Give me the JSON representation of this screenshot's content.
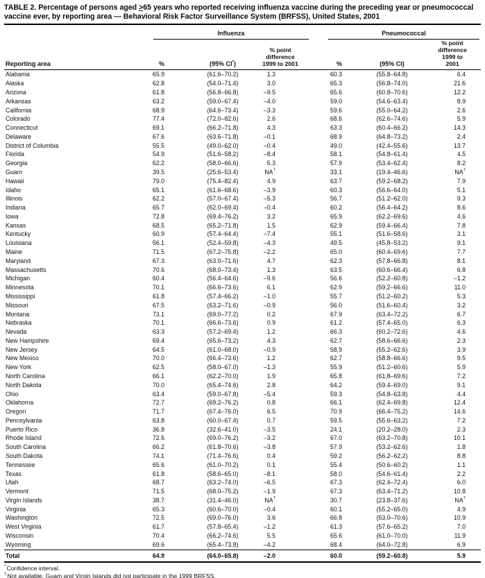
{
  "title": {
    "line1_pre": "TABLE 2. Percentage of persons aged ",
    "line1_geq": ">",
    "line1_post": "65 years who reported receiving influenza vaccine during the preceding year or pneumococcal",
    "line2": "vaccine ever, by reporting area — Behavioral Risk Factor Surveillance System (BRFSS), United States, 2001"
  },
  "table": {
    "header": {
      "reporting_area": "Reporting area",
      "influenza": "Influenza",
      "pneumococcal": "Pneumococcal",
      "pct": "%",
      "flu_ci": {
        "pre": "(95% CI",
        "sup": "*",
        "post": ")"
      },
      "pneu_ci": "(95% CI)",
      "diff1": "% point",
      "diff2": "difference",
      "diff3": "1999 to 2001"
    },
    "rows": [
      {
        "area": "Alabama",
        "flu_pct": "65.9",
        "flu_ci": "(61.6–70.2)",
        "flu_diff": "1.3",
        "pneu_pct": "60.3",
        "pneu_ci": "(55.8–64.8)",
        "pneu_diff": "6.4"
      },
      {
        "area": "Alaska",
        "flu_pct": "62.8",
        "flu_ci": "(54.0–71.4)",
        "flu_diff": "3.0",
        "pneu_pct": "65.3",
        "pneu_ci": "(56.8–74.0)",
        "pneu_diff": "21.6"
      },
      {
        "area": "Arizona",
        "flu_pct": "61.8",
        "flu_ci": "(56.8–66.8)",
        "flu_diff": "–9.5",
        "pneu_pct": "65.6",
        "pneu_ci": "(60.8–70.6)",
        "pneu_diff": "12.2"
      },
      {
        "area": "Arkansas",
        "flu_pct": "63.2",
        "flu_ci": "(59.0–67.4)",
        "flu_diff": "–4.0",
        "pneu_pct": "59.0",
        "pneu_ci": "(54.6–63.4)",
        "pneu_diff": "8.9"
      },
      {
        "area": "California",
        "flu_pct": "68.9",
        "flu_ci": "(64.6–73.4)",
        "flu_diff": "–3.3",
        "pneu_pct": "59.6",
        "pneu_ci": "(55.0–64.2)",
        "pneu_diff": "2.6"
      },
      {
        "area": "Colorado",
        "flu_pct": "77.4",
        "flu_ci": "(72.0–82.6)",
        "flu_diff": "2.6",
        "pneu_pct": "68.6",
        "pneu_ci": "(62.6–74.6)",
        "pneu_diff": "5.9"
      },
      {
        "area": "Connecticut",
        "flu_pct": "69.1",
        "flu_ci": "(66.2–71.8)",
        "flu_diff": "4.3",
        "pneu_pct": "63.3",
        "pneu_ci": "(60.4–66.2)",
        "pneu_diff": "14.3"
      },
      {
        "area": "Delaware",
        "flu_pct": "67.6",
        "flu_ci": "(63.6–71.8)",
        "flu_diff": "–0.1",
        "pneu_pct": "68.9",
        "pneu_ci": "(64.8–73.2)",
        "pneu_diff": "2.4"
      },
      {
        "area": "District of Columbia",
        "flu_pct": "55.5",
        "flu_ci": "(49.0–62.0)",
        "flu_diff": "–0.4",
        "pneu_pct": "49.0",
        "pneu_ci": "(42.4–55.6)",
        "pneu_diff": "13.7"
      },
      {
        "area": "Florida",
        "flu_pct": "54.9",
        "flu_ci": "(51.6–58.2)",
        "flu_diff": "–8.4",
        "pneu_pct": "58.1",
        "pneu_ci": "(54.8–61.4)",
        "pneu_diff": "4.5"
      },
      {
        "area": "Georgia",
        "flu_pct": "62.2",
        "flu_ci": "(58.0–66.6)",
        "flu_diff": "5.3",
        "pneu_pct": "57.9",
        "pneu_ci": "(53.4–62.4)",
        "pneu_diff": "8.2"
      },
      {
        "area": "Guam",
        "flu_pct": "39.5",
        "flu_ci": "(25.6–53.4)",
        "flu_diff": "NA†",
        "pneu_pct": "33.1",
        "pneu_ci": "(19.4–46.6)",
        "pneu_diff": "NA†"
      },
      {
        "area": "Hawaii",
        "flu_pct": "79.0",
        "flu_ci": "(75.4–82.4)",
        "flu_diff": "4.9",
        "pneu_pct": "63.7",
        "pneu_ci": "(59.2–68.2)",
        "pneu_diff": "7.9"
      },
      {
        "area": "Idaho",
        "flu_pct": "65.1",
        "flu_ci": "(61.6–68.6)",
        "flu_diff": "–3.9",
        "pneu_pct": "60.3",
        "pneu_ci": "(56.6–64.0)",
        "pneu_diff": "5.1"
      },
      {
        "area": "Illinois",
        "flu_pct": "62.2",
        "flu_ci": "(57.0–67.4)",
        "flu_diff": "–5.3",
        "pneu_pct": "56.7",
        "pneu_ci": "(51.2–62.0)",
        "pneu_diff": "9.3"
      },
      {
        "area": "Indiana",
        "flu_pct": "65.7",
        "flu_ci": "(62.0–69.4)",
        "flu_diff": "–0.4",
        "pneu_pct": "60.2",
        "pneu_ci": "(56.4–64.2)",
        "pneu_diff": "8.6"
      },
      {
        "area": "Iowa",
        "flu_pct": "72.8",
        "flu_ci": "(69.4–76.2)",
        "flu_diff": "3.2",
        "pneu_pct": "65.9",
        "pneu_ci": "(62.2–69.6)",
        "pneu_diff": "4.6"
      },
      {
        "area": "Kansas",
        "flu_pct": "68.5",
        "flu_ci": "(65.2–71.8)",
        "flu_diff": "1.5",
        "pneu_pct": "62.9",
        "pneu_ci": "(59.4–66.4)",
        "pneu_diff": "7.8"
      },
      {
        "area": "Kentucky",
        "flu_pct": "60.9",
        "flu_ci": "(57.4–64.4)",
        "flu_diff": "–7.4",
        "pneu_pct": "55.1",
        "pneu_ci": "(51.6–58.6)",
        "pneu_diff": "3.1"
      },
      {
        "area": "Louisiana",
        "flu_pct": "56.1",
        "flu_ci": "(52.4–59.8)",
        "flu_diff": "–4.3",
        "pneu_pct": "49.5",
        "pneu_ci": "(45.8–53.2)",
        "pneu_diff": "9.1"
      },
      {
        "area": "Maine",
        "flu_pct": "71.5",
        "flu_ci": "(67.2–75.8)",
        "flu_diff": "–2.2",
        "pneu_pct": "65.0",
        "pneu_ci": "(60.4–69.6)",
        "pneu_diff": "7.7"
      },
      {
        "area": "Maryland",
        "flu_pct": "67.3",
        "flu_ci": "(63.0–71.6)",
        "flu_diff": "4.7",
        "pneu_pct": "62.3",
        "pneu_ci": "(57.8–66.8)",
        "pneu_diff": "8.1"
      },
      {
        "area": "Massachusetts",
        "flu_pct": "70.6",
        "flu_ci": "(68.0–73.4)",
        "flu_diff": "1.3",
        "pneu_pct": "63.5",
        "pneu_ci": "(60.6–66.4)",
        "pneu_diff": "6.8"
      },
      {
        "area": "Michigan",
        "flu_pct": "60.4",
        "flu_ci": "(56.4–64.6)",
        "flu_diff": "–9.6",
        "pneu_pct": "56.6",
        "pneu_ci": "(52.2–60.8)",
        "pneu_diff": "–1.2"
      },
      {
        "area": "Minnesota",
        "flu_pct": "70.1",
        "flu_ci": "(66.6–73.6)",
        "flu_diff": "6.1",
        "pneu_pct": "62.9",
        "pneu_ci": "(59.2–66.6)",
        "pneu_diff": "11.0"
      },
      {
        "area": "Mississippi",
        "flu_pct": "61.8",
        "flu_ci": "(57.4–66.2)",
        "flu_diff": "–1.0",
        "pneu_pct": "55.7",
        "pneu_ci": "(51.2–60.2)",
        "pneu_diff": "5.3"
      },
      {
        "area": "Missouri",
        "flu_pct": "67.5",
        "flu_ci": "(63.2–71.6)",
        "flu_diff": "–0.9",
        "pneu_pct": "56.0",
        "pneu_ci": "(51.6–60.4)",
        "pneu_diff": "3.2"
      },
      {
        "area": "Montana",
        "flu_pct": "73.1",
        "flu_ci": "(69.0–77.2)",
        "flu_diff": "0.2",
        "pneu_pct": "67.9",
        "pneu_ci": "(63.4–72.2)",
        "pneu_diff": "6.7"
      },
      {
        "area": "Nebraska",
        "flu_pct": "70.1",
        "flu_ci": "(66.6–73.6)",
        "flu_diff": "0.9",
        "pneu_pct": "61.2",
        "pneu_ci": "(57.4–65.0)",
        "pneu_diff": "6.3"
      },
      {
        "area": "Nevada",
        "flu_pct": "63.3",
        "flu_ci": "(57.2–69.4)",
        "flu_diff": "1.2",
        "pneu_pct": "66.3",
        "pneu_ci": "(60.2–72.6)",
        "pneu_diff": "4.6"
      },
      {
        "area": "New Hampshire",
        "flu_pct": "69.4",
        "flu_ci": "(65.6–73.2)",
        "flu_diff": "4.3",
        "pneu_pct": "62.7",
        "pneu_ci": "(58.6–66.6)",
        "pneu_diff": "2.3"
      },
      {
        "area": "New Jersey",
        "flu_pct": "64.5",
        "flu_ci": "(61.0–68.0)",
        "flu_diff": "–0.9",
        "pneu_pct": "58.9",
        "pneu_ci": "(55.2–62.6)",
        "pneu_diff": "3.9"
      },
      {
        "area": "New Mexico",
        "flu_pct": "70.0",
        "flu_ci": "(66.4–73.6)",
        "flu_diff": "1.2",
        "pneu_pct": "62.7",
        "pneu_ci": "(58.8–66.6)",
        "pneu_diff": "9.5"
      },
      {
        "area": "New York",
        "flu_pct": "62.5",
        "flu_ci": "(58.0–67.0)",
        "flu_diff": "–1.3",
        "pneu_pct": "55.9",
        "pneu_ci": "(51.2–60.6)",
        "pneu_diff": "5.9"
      },
      {
        "area": "North Carolina",
        "flu_pct": "66.1",
        "flu_ci": "(62.2–70.0)",
        "flu_diff": "1.9",
        "pneu_pct": "65.8",
        "pneu_ci": "(61.8–69.6)",
        "pneu_diff": "7.2"
      },
      {
        "area": "North Dakota",
        "flu_pct": "70.0",
        "flu_ci": "(65.4–74.6)",
        "flu_diff": "2.8",
        "pneu_pct": "64.2",
        "pneu_ci": "(59.4–69.0)",
        "pneu_diff": "9.1"
      },
      {
        "area": "Ohio",
        "flu_pct": "63.4",
        "flu_ci": "(59.0–67.8)",
        "flu_diff": "–5.4",
        "pneu_pct": "59.3",
        "pneu_ci": "(54.8–63.8)",
        "pneu_diff": "4.4"
      },
      {
        "area": "Oklahoma",
        "flu_pct": "72.7",
        "flu_ci": "(69.2–76.2)",
        "flu_diff": "0.8",
        "pneu_pct": "66.1",
        "pneu_ci": "(62.4–69.8)",
        "pneu_diff": "12.4"
      },
      {
        "area": "Oregon",
        "flu_pct": "71.7",
        "flu_ci": "(67.4–76.0)",
        "flu_diff": "6.5",
        "pneu_pct": "70.9",
        "pneu_ci": "(66.4–75.2)",
        "pneu_diff": "14.6"
      },
      {
        "area": "Pennsylvania",
        "flu_pct": "63.8",
        "flu_ci": "(60.0–67.4)",
        "flu_diff": "0.7",
        "pneu_pct": "59.5",
        "pneu_ci": "(55.6–63.2)",
        "pneu_diff": "7.2"
      },
      {
        "area": "Puerto Rico",
        "flu_pct": "36.8",
        "flu_ci": "(32.6–41.0)",
        "flu_diff": "–3.5",
        "pneu_pct": "24.1",
        "pneu_ci": "(20.2–28.0)",
        "pneu_diff": "2.3"
      },
      {
        "area": "Rhode Island",
        "flu_pct": "72.6",
        "flu_ci": "(69.0–76.2)",
        "flu_diff": "–3.2",
        "pneu_pct": "67.0",
        "pneu_ci": "(63.2–70.8)",
        "pneu_diff": "10.1"
      },
      {
        "area": "South Carolina",
        "flu_pct": "66.2",
        "flu_ci": "(61.8–70.6)",
        "flu_diff": "–3.8",
        "pneu_pct": "57.9",
        "pneu_ci": "(53.2–62.6)",
        "pneu_diff": "1.8"
      },
      {
        "area": "South Dakota",
        "flu_pct": "74.1",
        "flu_ci": "(71.4–76.6)",
        "flu_diff": "0.4",
        "pneu_pct": "59.2",
        "pneu_ci": "(56.2–62.2)",
        "pneu_diff": "8.8"
      },
      {
        "area": "Tennessee",
        "flu_pct": "65.6",
        "flu_ci": "(61.0–70.2)",
        "flu_diff": "0.1",
        "pneu_pct": "55.4",
        "pneu_ci": "(50.6–60.2)",
        "pneu_diff": "1.1"
      },
      {
        "area": "Texas",
        "flu_pct": "61.8",
        "flu_ci": "(58.6–65.0)",
        "flu_diff": "–8.1",
        "pneu_pct": "58.0",
        "pneu_ci": "(54.6–61.4)",
        "pneu_diff": "2.2"
      },
      {
        "area": "Utah",
        "flu_pct": "68.7",
        "flu_ci": "(63.2–74.0)",
        "flu_diff": "–6.5",
        "pneu_pct": "67.3",
        "pneu_ci": "(62.4–72.4)",
        "pneu_diff": "6.0"
      },
      {
        "area": "Vermont",
        "flu_pct": "71.5",
        "flu_ci": "(68.0–75.2)",
        "flu_diff": "–1.9",
        "pneu_pct": "67.3",
        "pneu_ci": "(63.4–71.2)",
        "pneu_diff": "10.8"
      },
      {
        "area": "Virgin Islands",
        "flu_pct": "38.7",
        "flu_ci": "(31.4–46.0)",
        "flu_diff": "NA†",
        "pneu_pct": "30.7",
        "pneu_ci": "(23.8–37.6)",
        "pneu_diff": "NA†"
      },
      {
        "area": "Virginia",
        "flu_pct": "65.3",
        "flu_ci": "(60.6–70.0)",
        "flu_diff": "–0.4",
        "pneu_pct": "60.1",
        "pneu_ci": "(55.2–65.0)",
        "pneu_diff": "4.9"
      },
      {
        "area": "Washington",
        "flu_pct": "72.5",
        "flu_ci": "(69.0–76.0)",
        "flu_diff": "3.6",
        "pneu_pct": "66.8",
        "pneu_ci": "(63.0–70.6)",
        "pneu_diff": "10.9"
      },
      {
        "area": "West Virginia",
        "flu_pct": "61.7",
        "flu_ci": "(57.8–65.4)",
        "flu_diff": "–1.2",
        "pneu_pct": "61.3",
        "pneu_ci": "(57.6–65.2)",
        "pneu_diff": "7.0"
      },
      {
        "area": "Wisconsin",
        "flu_pct": "70.4",
        "flu_ci": "(66.2–74.6)",
        "flu_diff": "5.5",
        "pneu_pct": "65.6",
        "pneu_ci": "(61.0–70.0)",
        "pneu_diff": "11.9"
      },
      {
        "area": "Wyoming",
        "flu_pct": "69.6",
        "flu_ci": "(65.4–73.8)",
        "flu_diff": "–4.2",
        "pneu_pct": "68.4",
        "pneu_ci": "(64.0–72.8)",
        "pneu_diff": "6.9"
      }
    ],
    "total": {
      "area": "Total",
      "flu_pct": "64.9",
      "flu_ci": "(64.0–65.8)",
      "flu_diff": "–2.0",
      "pneu_pct": "60.0",
      "pneu_ci": "(59.2–60.8)",
      "pneu_diff": "5.9"
    }
  },
  "footnotes": [
    {
      "marker": "*",
      "text": "Confidence interval."
    },
    {
      "marker": "†",
      "text": "Not available. Guam and Virgin Islands did not participate in the 1999 BRFSS."
    }
  ]
}
